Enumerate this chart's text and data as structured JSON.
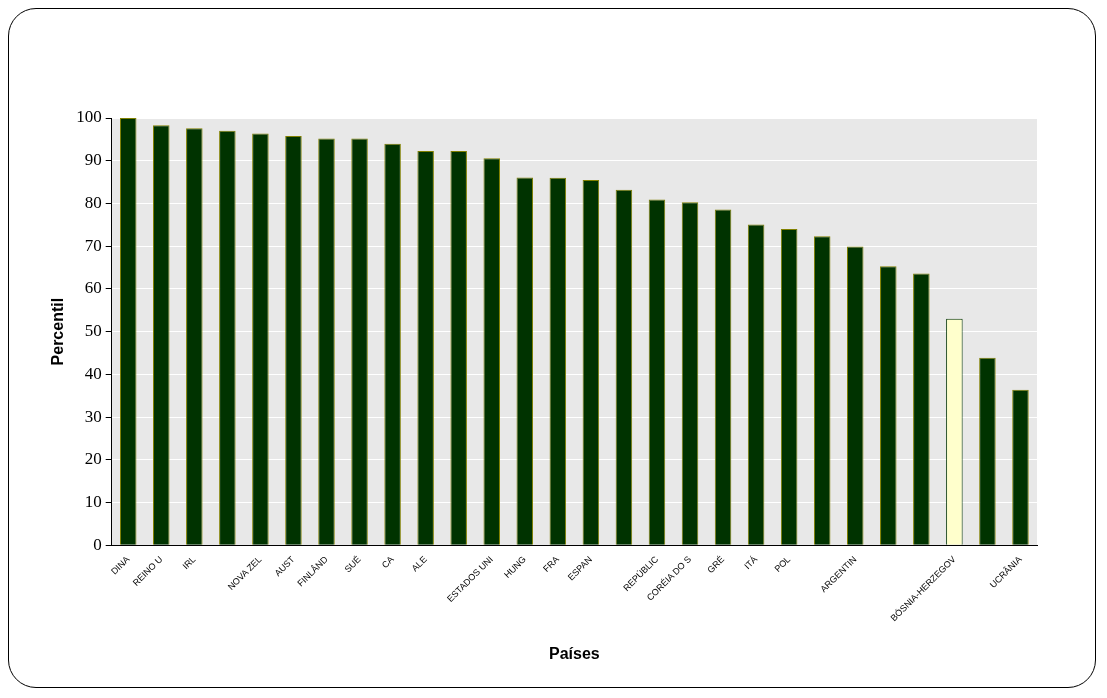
{
  "chart_data": {
    "type": "bar",
    "xlabel": "Países",
    "ylabel": "Percentil",
    "categories": [
      "DINA",
      "REINO U",
      "IRL",
      null,
      "NOVA ZEL",
      "AUST",
      "FINLÂND",
      "SUÉ",
      "CA",
      "ALE",
      null,
      "ESTADOS UNI",
      "HUNG",
      "FRA",
      "ESPAN",
      null,
      "REPÚBLIC",
      "CORÉIA DO S",
      "GRÉ",
      "ITÁ",
      "POL",
      null,
      "ARGENTIN",
      null,
      null,
      "BÓSNIA-HERZEGOV",
      null,
      "UCRÂNIA"
    ],
    "values": [
      100,
      98.3,
      97.6,
      97,
      96.4,
      95.8,
      95.2,
      95.2,
      94,
      92.3,
      92.3,
      90.6,
      86.1,
      86,
      85.5,
      83.2,
      80.9,
      80.3,
      78.6,
      75.1,
      74,
      72.3,
      69.9,
      65.3,
      63.6,
      53,
      43.9,
      36.4
    ],
    "colors": [
      "#003300",
      "#003300",
      "#003300",
      "#003300",
      "#003300",
      "#003300",
      "#003300",
      "#003300",
      "#003300",
      "#003300",
      "#003300",
      "#003300",
      "#003300",
      "#003300",
      "#003300",
      "#003300",
      "#003300",
      "#003300",
      "#003300",
      "#003300",
      "#003300",
      "#003300",
      "#003300",
      "#003300",
      "#003300",
      "#ffffcc",
      "#003300",
      "#003300"
    ],
    "ylim": [
      0,
      100
    ],
    "yticks": [
      0,
      10,
      20,
      30,
      40,
      50,
      60,
      70,
      80,
      90,
      100
    ],
    "grid": "y",
    "legend": false
  }
}
